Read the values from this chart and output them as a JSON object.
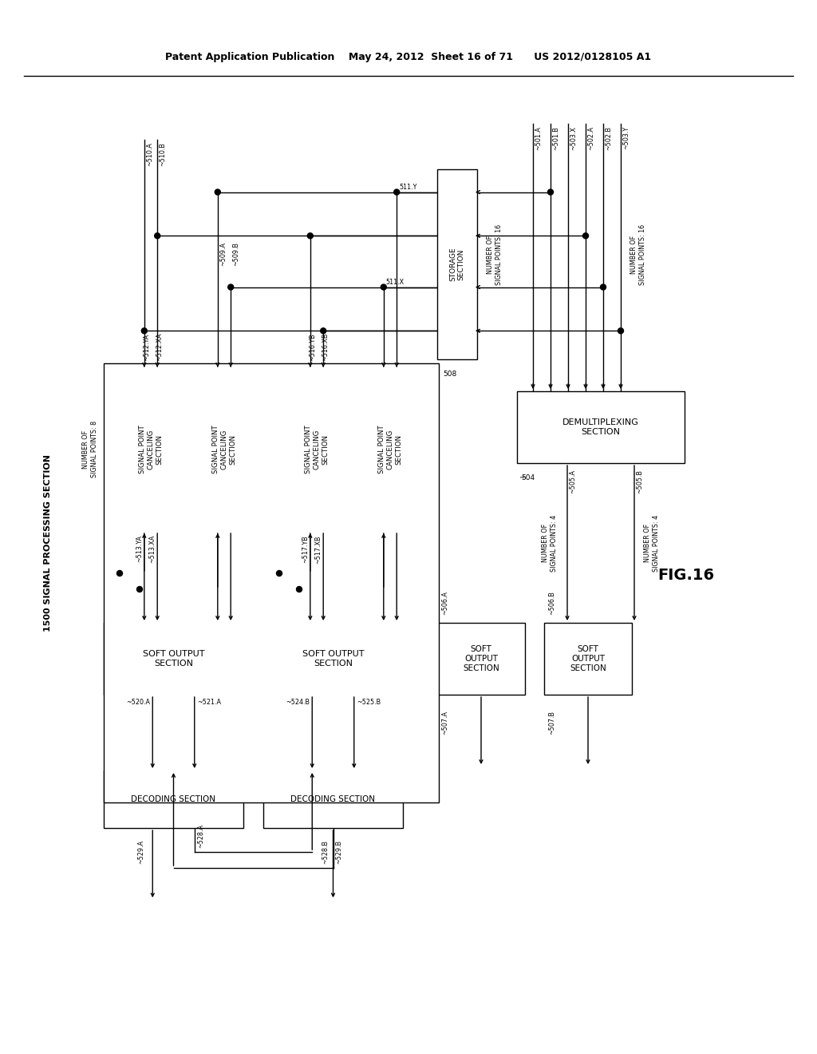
{
  "header": "Patent Application Publication    May 24, 2012  Sheet 16 of 71      US 2012/0128105 A1",
  "fig_label": "FIG.16",
  "section_label": "1500 SIGNAL PROCESSING SECTION",
  "bg_color": "#ffffff",
  "lw": 1.0,
  "arrow_ms": 7
}
